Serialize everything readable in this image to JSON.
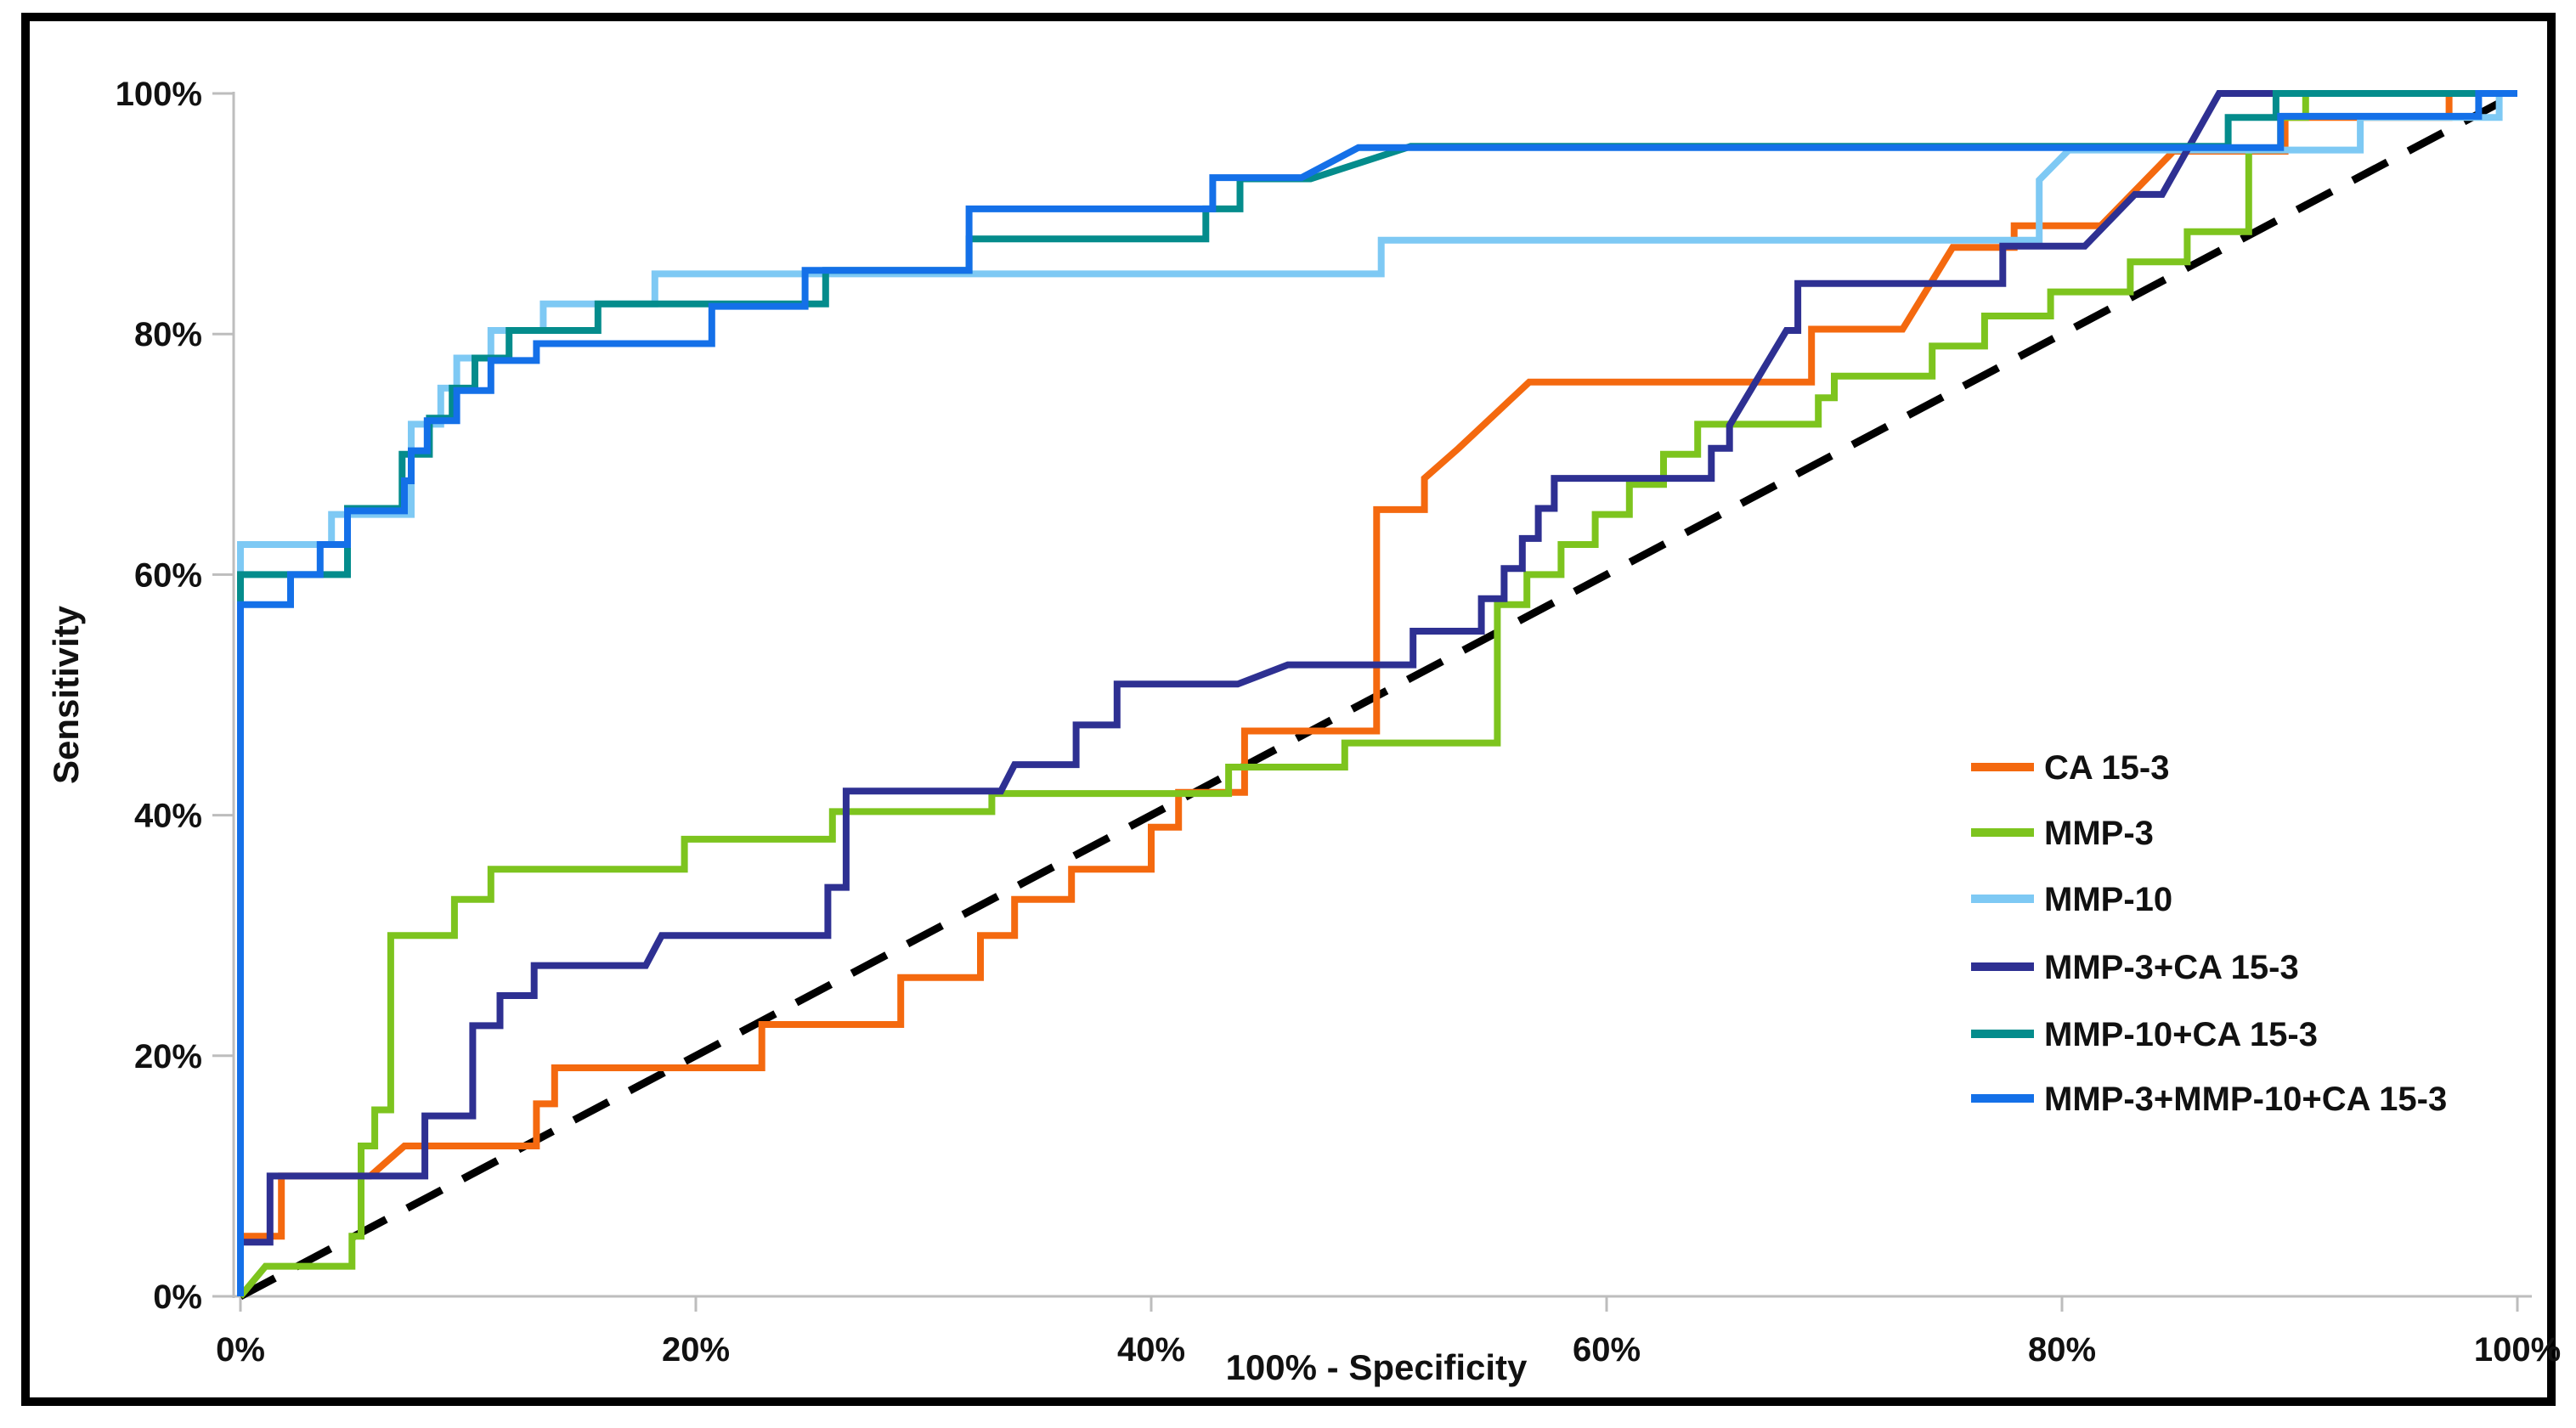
{
  "figure": {
    "background_color": "#ffffff",
    "border_color": "#000000"
  },
  "chart_data": {
    "type": "line",
    "subtype": "roc-curves",
    "title": "",
    "xlabel": "100% - Specificity",
    "ylabel": "Sensitivity",
    "xlim": [
      0,
      100
    ],
    "ylim": [
      0,
      100
    ],
    "x_ticks": [
      {
        "value": 0,
        "label": "0%"
      },
      {
        "value": 20,
        "label": "20%"
      },
      {
        "value": 40,
        "label": "40%"
      },
      {
        "value": 60,
        "label": "60%"
      },
      {
        "value": 80,
        "label": "80%"
      },
      {
        "value": 100,
        "label": "100%"
      }
    ],
    "y_ticks": [
      {
        "value": 0,
        "label": "0%"
      },
      {
        "value": 20,
        "label": "20%"
      },
      {
        "value": 40,
        "label": "40%"
      },
      {
        "value": 60,
        "label": "60%"
      },
      {
        "value": 80,
        "label": "80%"
      },
      {
        "value": 100,
        "label": "100%"
      }
    ],
    "grid": false,
    "axis_color": "#bdbdbd",
    "legend_position": "right-middle",
    "reference_line": {
      "name": "chance-diagonal",
      "style": "dashed",
      "color": "#000000",
      "points": [
        [
          0,
          0
        ],
        [
          100,
          100
        ]
      ]
    },
    "series": [
      {
        "name": "CA 15-3",
        "color": "#F4690F",
        "points": [
          [
            0,
            0
          ],
          [
            0,
            5
          ],
          [
            1.8,
            5
          ],
          [
            1.8,
            10
          ],
          [
            5.7,
            10
          ],
          [
            7.2,
            12.5
          ],
          [
            13,
            12.5
          ],
          [
            13,
            16
          ],
          [
            13.8,
            16
          ],
          [
            13.8,
            19
          ],
          [
            22.9,
            19
          ],
          [
            22.9,
            22.6
          ],
          [
            29,
            22.6
          ],
          [
            29,
            26.5
          ],
          [
            32.5,
            26.5
          ],
          [
            32.5,
            30
          ],
          [
            34,
            30
          ],
          [
            34,
            33
          ],
          [
            36.5,
            33
          ],
          [
            36.5,
            35.5
          ],
          [
            40,
            35.5
          ],
          [
            40,
            39
          ],
          [
            41.2,
            39
          ],
          [
            41.2,
            41.9
          ],
          [
            44.1,
            41.9
          ],
          [
            44.1,
            47
          ],
          [
            49.9,
            47
          ],
          [
            49.9,
            65.4
          ],
          [
            52,
            65.4
          ],
          [
            52,
            68
          ],
          [
            53.5,
            70.5
          ],
          [
            56.6,
            76
          ],
          [
            69,
            76
          ],
          [
            69,
            80.4
          ],
          [
            73,
            80.4
          ],
          [
            75.2,
            87.2
          ],
          [
            77.9,
            87.2
          ],
          [
            77.9,
            89
          ],
          [
            81.7,
            89
          ],
          [
            84.9,
            95.2
          ],
          [
            89.8,
            95.2
          ],
          [
            89.8,
            98
          ],
          [
            97,
            98
          ],
          [
            97,
            100
          ],
          [
            100,
            100
          ]
        ]
      },
      {
        "name": "MMP-3",
        "color": "#7DC41E",
        "points": [
          [
            0,
            0
          ],
          [
            1.1,
            2.5
          ],
          [
            4.9,
            2.5
          ],
          [
            4.9,
            5
          ],
          [
            5.3,
            5
          ],
          [
            5.3,
            12.5
          ],
          [
            5.9,
            12.5
          ],
          [
            5.9,
            15.5
          ],
          [
            6.6,
            15.5
          ],
          [
            6.6,
            30
          ],
          [
            9.4,
            30
          ],
          [
            9.4,
            33
          ],
          [
            11,
            33
          ],
          [
            11,
            35.5
          ],
          [
            19.5,
            35.5
          ],
          [
            19.5,
            38
          ],
          [
            26,
            38
          ],
          [
            26,
            40.3
          ],
          [
            33,
            40.3
          ],
          [
            33,
            41.8
          ],
          [
            43.4,
            41.8
          ],
          [
            43.4,
            44
          ],
          [
            48.5,
            44
          ],
          [
            48.5,
            46
          ],
          [
            55.2,
            46
          ],
          [
            55.2,
            57.5
          ],
          [
            56.5,
            57.5
          ],
          [
            56.5,
            60
          ],
          [
            58,
            60
          ],
          [
            58,
            62.5
          ],
          [
            59.5,
            62.5
          ],
          [
            59.5,
            65
          ],
          [
            61,
            65
          ],
          [
            61,
            67.5
          ],
          [
            62.5,
            67.5
          ],
          [
            62.5,
            70
          ],
          [
            64,
            70
          ],
          [
            64,
            72.5
          ],
          [
            69.3,
            72.5
          ],
          [
            69.3,
            74.7
          ],
          [
            70,
            74.7
          ],
          [
            70,
            76.5
          ],
          [
            74.3,
            76.5
          ],
          [
            74.3,
            79
          ],
          [
            76.6,
            79
          ],
          [
            76.6,
            81.5
          ],
          [
            79.5,
            81.5
          ],
          [
            79.5,
            83.5
          ],
          [
            83,
            83.5
          ],
          [
            83,
            86
          ],
          [
            85.5,
            86
          ],
          [
            85.5,
            88.5
          ],
          [
            88.2,
            88.5
          ],
          [
            88.2,
            95.3
          ],
          [
            89.6,
            95.3
          ],
          [
            89.6,
            98
          ],
          [
            90.7,
            98
          ],
          [
            90.7,
            100
          ],
          [
            100,
            100
          ]
        ]
      },
      {
        "name": "MMP-10",
        "color": "#7EC9F4",
        "points": [
          [
            0,
            0
          ],
          [
            0,
            62.5
          ],
          [
            4,
            62.5
          ],
          [
            4,
            65
          ],
          [
            7.5,
            65
          ],
          [
            7.5,
            72.5
          ],
          [
            8.8,
            72.5
          ],
          [
            8.8,
            75.5
          ],
          [
            9.5,
            75.5
          ],
          [
            9.5,
            78
          ],
          [
            11,
            78
          ],
          [
            11,
            80.3
          ],
          [
            13.3,
            80.3
          ],
          [
            13.3,
            82.5
          ],
          [
            18.2,
            82.5
          ],
          [
            18.2,
            85
          ],
          [
            50.1,
            85
          ],
          [
            50.1,
            87.8
          ],
          [
            79,
            87.8
          ],
          [
            79,
            92.8
          ],
          [
            80.3,
            95.3
          ],
          [
            93.1,
            95.3
          ],
          [
            93.1,
            98
          ],
          [
            99.2,
            98
          ],
          [
            99.2,
            100
          ],
          [
            100,
            100
          ]
        ]
      },
      {
        "name": "MMP-3+CA 15-3",
        "color": "#2E3092",
        "points": [
          [
            0,
            0
          ],
          [
            0,
            4.5
          ],
          [
            1.3,
            4.5
          ],
          [
            1.3,
            10
          ],
          [
            8.1,
            10
          ],
          [
            8.1,
            15
          ],
          [
            10.2,
            15
          ],
          [
            10.2,
            22.5
          ],
          [
            11.4,
            22.5
          ],
          [
            11.4,
            25
          ],
          [
            12.9,
            25
          ],
          [
            12.9,
            27.5
          ],
          [
            17.8,
            27.5
          ],
          [
            18.5,
            30
          ],
          [
            25.8,
            30
          ],
          [
            25.8,
            34
          ],
          [
            26.6,
            34
          ],
          [
            26.6,
            42
          ],
          [
            33.4,
            42
          ],
          [
            34,
            44.2
          ],
          [
            36.7,
            44.2
          ],
          [
            36.7,
            47.5
          ],
          [
            38.5,
            47.5
          ],
          [
            38.5,
            50.9
          ],
          [
            43.8,
            50.9
          ],
          [
            46,
            52.5
          ],
          [
            51.5,
            52.5
          ],
          [
            51.5,
            55.3
          ],
          [
            54.5,
            55.3
          ],
          [
            54.5,
            58
          ],
          [
            55.5,
            58
          ],
          [
            55.5,
            60.5
          ],
          [
            56.3,
            60.5
          ],
          [
            56.3,
            63
          ],
          [
            57,
            63
          ],
          [
            57,
            65.5
          ],
          [
            57.7,
            65.5
          ],
          [
            57.7,
            68
          ],
          [
            64.6,
            68
          ],
          [
            64.6,
            70.5
          ],
          [
            65.4,
            70.5
          ],
          [
            65.4,
            72.4
          ],
          [
            67.9,
            80.3
          ],
          [
            68.4,
            80.3
          ],
          [
            68.4,
            84.2
          ],
          [
            77.4,
            84.2
          ],
          [
            77.4,
            87.3
          ],
          [
            81,
            87.3
          ],
          [
            83.2,
            91.6
          ],
          [
            84.4,
            91.6
          ],
          [
            86.9,
            100
          ],
          [
            100,
            100
          ]
        ]
      },
      {
        "name": "MMP-10+CA 15-3",
        "color": "#048C8C",
        "points": [
          [
            0,
            0
          ],
          [
            0,
            60
          ],
          [
            4.7,
            60
          ],
          [
            4.7,
            65.5
          ],
          [
            7.1,
            65.5
          ],
          [
            7.1,
            70
          ],
          [
            8.3,
            70
          ],
          [
            8.3,
            73
          ],
          [
            9.3,
            73
          ],
          [
            9.3,
            75.5
          ],
          [
            10.3,
            75.5
          ],
          [
            10.3,
            78
          ],
          [
            11.8,
            78
          ],
          [
            11.8,
            80.3
          ],
          [
            15.7,
            80.3
          ],
          [
            15.7,
            82.5
          ],
          [
            25.7,
            82.5
          ],
          [
            25.7,
            85.3
          ],
          [
            32,
            85.3
          ],
          [
            32,
            87.9
          ],
          [
            42.4,
            87.9
          ],
          [
            42.4,
            90.4
          ],
          [
            43.9,
            90.4
          ],
          [
            43.9,
            92.9
          ],
          [
            47,
            92.9
          ],
          [
            51.4,
            95.6
          ],
          [
            87.3,
            95.6
          ],
          [
            87.3,
            98
          ],
          [
            89.4,
            98
          ],
          [
            89.4,
            100
          ],
          [
            100,
            100
          ]
        ]
      },
      {
        "name": "MMP-3+MMP-10+CA 15-3",
        "color": "#1470E8",
        "points": [
          [
            0,
            0
          ],
          [
            0,
            57.5
          ],
          [
            2.2,
            57.5
          ],
          [
            2.2,
            60
          ],
          [
            3.5,
            60
          ],
          [
            3.5,
            62.5
          ],
          [
            4.7,
            62.5
          ],
          [
            4.7,
            65.3
          ],
          [
            7.2,
            65.3
          ],
          [
            7.2,
            67.8
          ],
          [
            7.5,
            67.8
          ],
          [
            7.5,
            70.3
          ],
          [
            8.2,
            70.3
          ],
          [
            8.2,
            72.8
          ],
          [
            9.5,
            72.8
          ],
          [
            9.5,
            75.3
          ],
          [
            11,
            75.3
          ],
          [
            11,
            77.8
          ],
          [
            13,
            77.8
          ],
          [
            13,
            79.2
          ],
          [
            20.7,
            79.2
          ],
          [
            20.7,
            82.3
          ],
          [
            24.8,
            82.3
          ],
          [
            24.8,
            85.3
          ],
          [
            32,
            85.3
          ],
          [
            32,
            90.4
          ],
          [
            42.7,
            90.4
          ],
          [
            42.7,
            93
          ],
          [
            46.6,
            93
          ],
          [
            49.1,
            95.5
          ],
          [
            89.6,
            95.5
          ],
          [
            89.6,
            98.1
          ],
          [
            98.3,
            98.1
          ],
          [
            98.3,
            100
          ],
          [
            100,
            100
          ]
        ]
      }
    ]
  },
  "axes": {
    "x_title": "100% - Specificity",
    "y_title": "Sensitivity"
  },
  "legend": {
    "items": [
      {
        "label": "CA 15-3"
      },
      {
        "label": "MMP-3"
      },
      {
        "label": "MMP-10"
      },
      {
        "label": "MMP-3+CA 15-3"
      },
      {
        "label": "MMP-10+CA 15-3"
      },
      {
        "label": "MMP-3+MMP-10+CA 15-3"
      }
    ]
  }
}
